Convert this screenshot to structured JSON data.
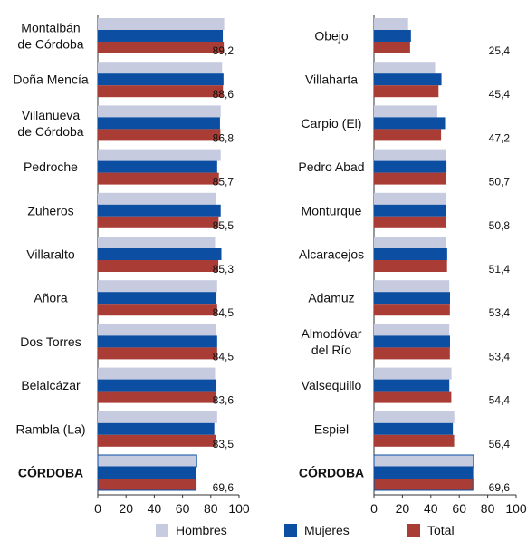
{
  "chart_data": [
    {
      "type": "bar",
      "orientation": "horizontal",
      "title": "",
      "xlabel": "",
      "ylabel": "",
      "xlim": [
        0,
        100
      ],
      "xticks": [
        0,
        20,
        40,
        60,
        80,
        100
      ],
      "categories": [
        "Montalbán\nde Córdoba",
        "Doña Mencía",
        "Villanueva\nde Córdoba",
        "Pedroche",
        "Zuheros",
        "Villaralto",
        "Añora",
        "Dos Torres",
        "Belalcázar",
        "Rambla (La)",
        "CÓRDOBA"
      ],
      "series": [
        {
          "name": "Hombres",
          "values": [
            89.5,
            88.0,
            87.0,
            87.0,
            83.5,
            83.0,
            84.5,
            84.0,
            83.0,
            84.5,
            70.0
          ]
        },
        {
          "name": "Mujeres",
          "values": [
            88.5,
            89.0,
            86.5,
            84.5,
            87.0,
            87.5,
            84.0,
            84.5,
            84.0,
            82.5,
            69.5
          ]
        },
        {
          "name": "Total",
          "values": [
            89.2,
            88.6,
            86.8,
            85.7,
            85.5,
            85.3,
            84.5,
            84.5,
            83.6,
            83.5,
            69.6
          ]
        }
      ],
      "value_labels": [
        "89,2",
        "88,6",
        "86,8",
        "85,7",
        "85,5",
        "85,3",
        "84,5",
        "84,5",
        "83,6",
        "83,5",
        "69,6"
      ]
    },
    {
      "type": "bar",
      "orientation": "horizontal",
      "title": "",
      "xlabel": "",
      "ylabel": "",
      "xlim": [
        0,
        100
      ],
      "xticks": [
        0,
        20,
        40,
        60,
        80,
        100
      ],
      "categories": [
        "Obejo",
        "Villaharta",
        "Carpio (El)",
        "Pedro Abad",
        "Monturque",
        "Alcaracejos",
        "Adamuz",
        "Almodóvar\ndel Río",
        "Valsequillo",
        "Espiel",
        "CÓRDOBA"
      ],
      "series": [
        {
          "name": "Hombres",
          "values": [
            24.0,
            43.0,
            44.5,
            50.5,
            51.0,
            50.5,
            53.0,
            53.0,
            54.5,
            56.5,
            70.0
          ]
        },
        {
          "name": "Mujeres",
          "values": [
            26.0,
            47.5,
            50.0,
            51.0,
            50.5,
            51.5,
            53.5,
            53.5,
            53.0,
            55.5,
            69.5
          ]
        },
        {
          "name": "Total",
          "values": [
            25.4,
            45.4,
            47.2,
            50.7,
            50.8,
            51.4,
            53.4,
            53.4,
            54.4,
            56.4,
            69.6
          ]
        }
      ],
      "value_labels": [
        "25,4",
        "45,4",
        "47,2",
        "50,7",
        "50,8",
        "51,4",
        "53,4",
        "53,4",
        "54,4",
        "56,4",
        "69,6"
      ]
    }
  ],
  "legend": {
    "placement": "bottom",
    "items": [
      {
        "label": "Hombres",
        "color": "#c6cbe0"
      },
      {
        "label": "Mujeres",
        "color": "#0b4ea2"
      },
      {
        "label": "Total",
        "color": "#a93d35"
      }
    ]
  },
  "colors": {
    "hombres": "#c6cbe0",
    "mujeres": "#0b4ea2",
    "total": "#a93d35",
    "highlight_border": "#0b4ea2",
    "axis": "#333333",
    "grid": "#666666"
  }
}
